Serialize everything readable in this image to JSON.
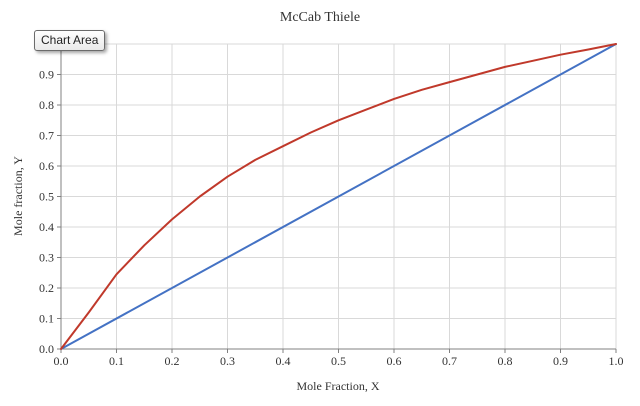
{
  "tooltip": {
    "label": "Chart Area"
  },
  "chart_data": {
    "type": "line",
    "title": "McCab Thiele",
    "xlabel": "Mole Fraction, X",
    "ylabel": "Mole fraction, Y",
    "xlim": [
      0,
      1
    ],
    "ylim": [
      0,
      1
    ],
    "x_ticks": [
      "0.0",
      "0.1",
      "0.2",
      "0.3",
      "0.4",
      "0.5",
      "0.6",
      "0.7",
      "0.8",
      "0.9",
      "1.0"
    ],
    "y_ticks": [
      "0.0",
      "0.1",
      "0.2",
      "0.3",
      "0.4",
      "0.5",
      "0.6",
      "0.7",
      "0.8",
      "0.9"
    ],
    "grid": true,
    "legend": "none",
    "series": [
      {
        "color": "#4472c4",
        "x": [
          0,
          1
        ],
        "y": [
          0,
          1
        ]
      },
      {
        "color": "#c0392b",
        "x": [
          0,
          0.05,
          0.1,
          0.15,
          0.2,
          0.25,
          0.3,
          0.35,
          0.4,
          0.45,
          0.5,
          0.55,
          0.6,
          0.65,
          0.7,
          0.75,
          0.8,
          0.85,
          0.9,
          0.95,
          1.0
        ],
        "y": [
          0,
          0.12,
          0.245,
          0.34,
          0.425,
          0.5,
          0.565,
          0.62,
          0.665,
          0.71,
          0.75,
          0.785,
          0.82,
          0.85,
          0.875,
          0.9,
          0.925,
          0.945,
          0.965,
          0.982,
          1.0
        ]
      }
    ]
  }
}
